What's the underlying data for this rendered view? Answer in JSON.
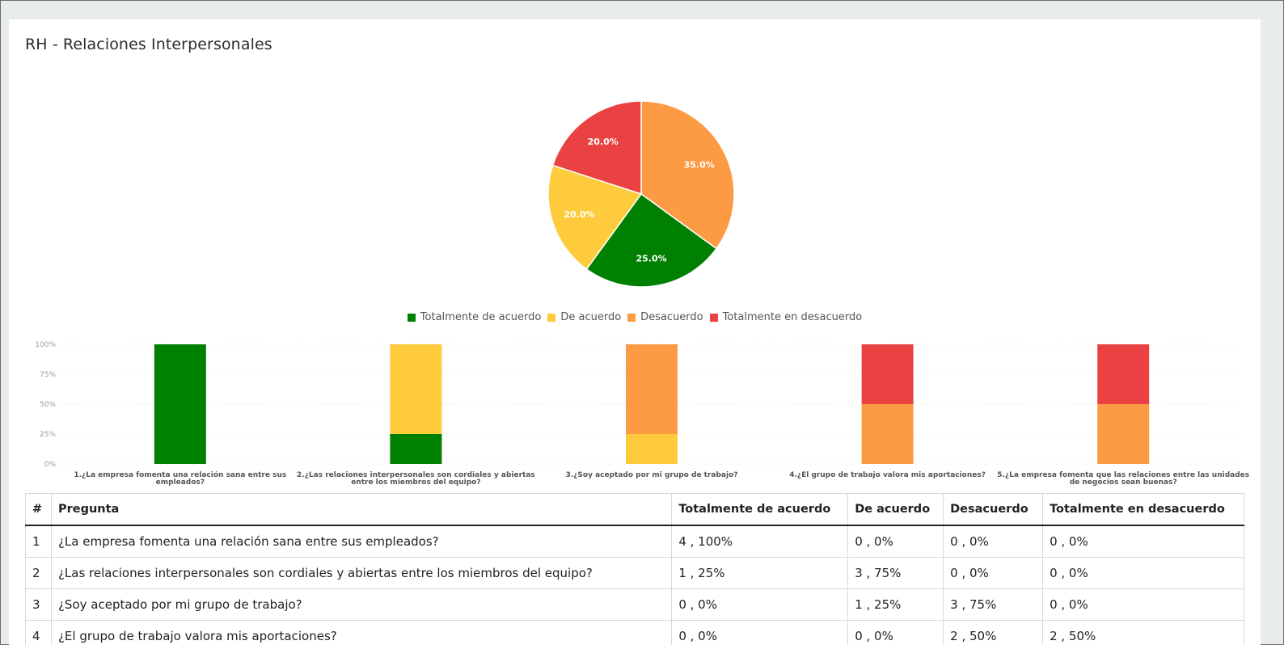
{
  "title": "RH - Relaciones Interpersonales",
  "colors": {
    "totalmente_de_acuerdo": "#008000",
    "de_acuerdo": "#fdcb3b",
    "desacuerdo": "#fd9a44",
    "totalmente_en_desacuerdo": "#ea4142"
  },
  "chart_data": [
    {
      "type": "pie",
      "labels": [
        "Totalmente de acuerdo",
        "De acuerdo",
        "Desacuerdo",
        "Totalmente en desacuerdo"
      ],
      "values": [
        25.0,
        20.0,
        35.0,
        20.0
      ],
      "data_labels": [
        "25.0%",
        "20.0%",
        "35.0%",
        "20.0%"
      ],
      "legend": "bottom"
    },
    {
      "type": "bar",
      "stacked": true,
      "categories": [
        [
          "1.¿La empresa fomenta una relación sana entre sus",
          "empleados?"
        ],
        [
          "2.¿Las relaciones interpersonales son cordiales y abiertas",
          "entre los miembros del equipo?"
        ],
        [
          "3.¿Soy aceptado por mi grupo de trabajo?"
        ],
        [
          "4.¿El grupo de trabajo valora mis aportaciones?"
        ],
        [
          "5.¿La empresa fomenta que las relaciones entre las unidades",
          "de negocios sean buenas?"
        ]
      ],
      "series": [
        {
          "name": "Totalmente de acuerdo",
          "values": [
            100,
            25,
            0,
            0,
            0
          ]
        },
        {
          "name": "De acuerdo",
          "values": [
            0,
            75,
            25,
            0,
            0
          ]
        },
        {
          "name": "Desacuerdo",
          "values": [
            0,
            0,
            75,
            50,
            50
          ]
        },
        {
          "name": "Totalmente en desacuerdo",
          "values": [
            0,
            0,
            0,
            50,
            50
          ]
        }
      ],
      "ylim": [
        0,
        100
      ],
      "yticks": [
        "0%",
        "25%",
        "50%",
        "75%",
        "100%"
      ],
      "grid": true
    }
  ],
  "table": {
    "headers": [
      "#",
      "Pregunta",
      "Totalmente de acuerdo",
      "De acuerdo",
      "Desacuerdo",
      "Totalmente en desacuerdo"
    ],
    "rows": [
      [
        "1",
        "¿La empresa fomenta una relación sana entre sus empleados?",
        "4 , 100%",
        "0 , 0%",
        "0 , 0%",
        "0 , 0%"
      ],
      [
        "2",
        "¿Las relaciones interpersonales son cordiales y abiertas entre los miembros del equipo?",
        "1 , 25%",
        "3 , 75%",
        "0 , 0%",
        "0 , 0%"
      ],
      [
        "3",
        "¿Soy aceptado por mi grupo de trabajo?",
        "0 , 0%",
        "1 , 25%",
        "3 , 75%",
        "0 , 0%"
      ],
      [
        "4",
        "¿El grupo de trabajo valora mis aportaciones?",
        "0 , 0%",
        "0 , 0%",
        "2 , 50%",
        "2 , 50%"
      ]
    ]
  }
}
